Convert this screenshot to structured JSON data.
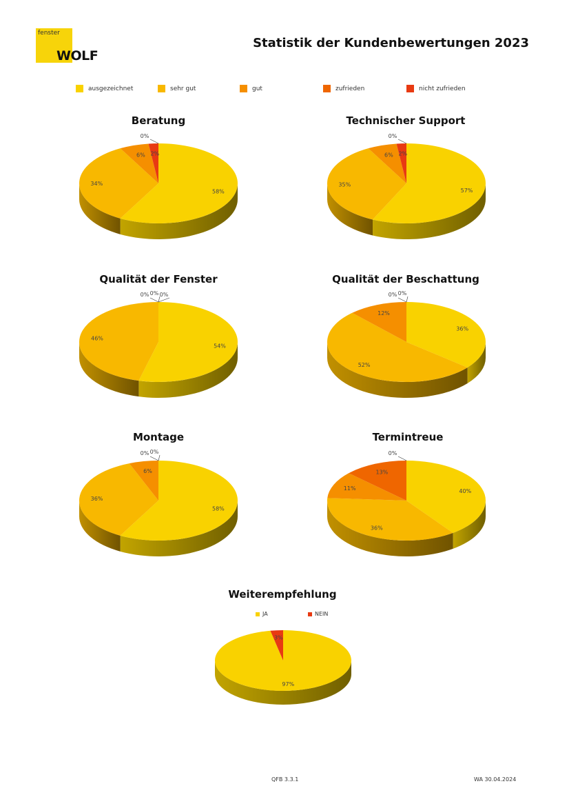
{
  "logo": {
    "small": "fenster",
    "big": "WOLF"
  },
  "title": "Statistik der Kundenbewertungen 2023",
  "legend": [
    {
      "label": "ausgezeichnet",
      "color": "#f9d200"
    },
    {
      "label": "sehr gut",
      "color": "#f8b800"
    },
    {
      "label": "gut",
      "color": "#f58f00"
    },
    {
      "label": "zufrieden",
      "color": "#ef6600"
    },
    {
      "label": "nicht zufrieden",
      "color": "#e83a12"
    }
  ],
  "chart_data": [
    {
      "type": "pie",
      "title": "Beratung",
      "categories": [
        "ausgezeichnet",
        "sehr gut",
        "gut",
        "zufrieden",
        "nicht zufrieden"
      ],
      "values": [
        58,
        34,
        6,
        0,
        2
      ],
      "labels": [
        "58%",
        "34%",
        "6%",
        "0%",
        "2%"
      ]
    },
    {
      "type": "pie",
      "title": "Technischer Support",
      "categories": [
        "ausgezeichnet",
        "sehr gut",
        "gut",
        "zufrieden",
        "nicht zufrieden"
      ],
      "values": [
        57,
        35,
        6,
        0,
        2
      ],
      "labels": [
        "57%",
        "35%",
        "6%",
        "0%",
        "2%"
      ]
    },
    {
      "type": "pie",
      "title": "Qualität der Fenster",
      "categories": [
        "ausgezeichnet",
        "sehr gut",
        "gut",
        "zufrieden",
        "nicht zufrieden"
      ],
      "values": [
        54,
        46,
        0,
        0,
        0
      ],
      "labels": [
        "54%",
        "46%",
        "0%",
        "0%",
        "0%"
      ]
    },
    {
      "type": "pie",
      "title": "Qualität der Beschattung",
      "categories": [
        "ausgezeichnet",
        "sehr gut",
        "gut",
        "zufrieden",
        "nicht zufrieden"
      ],
      "values": [
        36,
        52,
        12,
        0,
        0
      ],
      "labels": [
        "36%",
        "52%",
        "12%",
        "0%",
        "0%"
      ]
    },
    {
      "type": "pie",
      "title": "Montage",
      "categories": [
        "ausgezeichnet",
        "sehr gut",
        "gut",
        "zufrieden",
        "nicht zufrieden"
      ],
      "values": [
        58,
        36,
        6,
        0,
        0
      ],
      "labels": [
        "58%",
        "36%",
        "6%",
        "0%",
        "0%"
      ]
    },
    {
      "type": "pie",
      "title": "Termintreue",
      "categories": [
        "ausgezeichnet",
        "sehr gut",
        "gut",
        "zufrieden",
        "nicht zufrieden"
      ],
      "values": [
        40,
        36,
        11,
        13,
        0
      ],
      "labels": [
        "40%",
        "36%",
        "11%",
        "13%",
        "0%"
      ]
    },
    {
      "type": "pie",
      "title": "Weiterempfehlung",
      "categories": [
        "JA",
        "NEIN"
      ],
      "values": [
        97,
        3
      ],
      "labels": [
        "97%",
        "3%"
      ],
      "legend": [
        {
          "label": "JA",
          "color": "#f9d200"
        },
        {
          "label": "NEIN",
          "color": "#e83a12"
        }
      ]
    }
  ],
  "footer": {
    "left": "QFB 3.3.1",
    "right": "WA 30.04.2024"
  }
}
